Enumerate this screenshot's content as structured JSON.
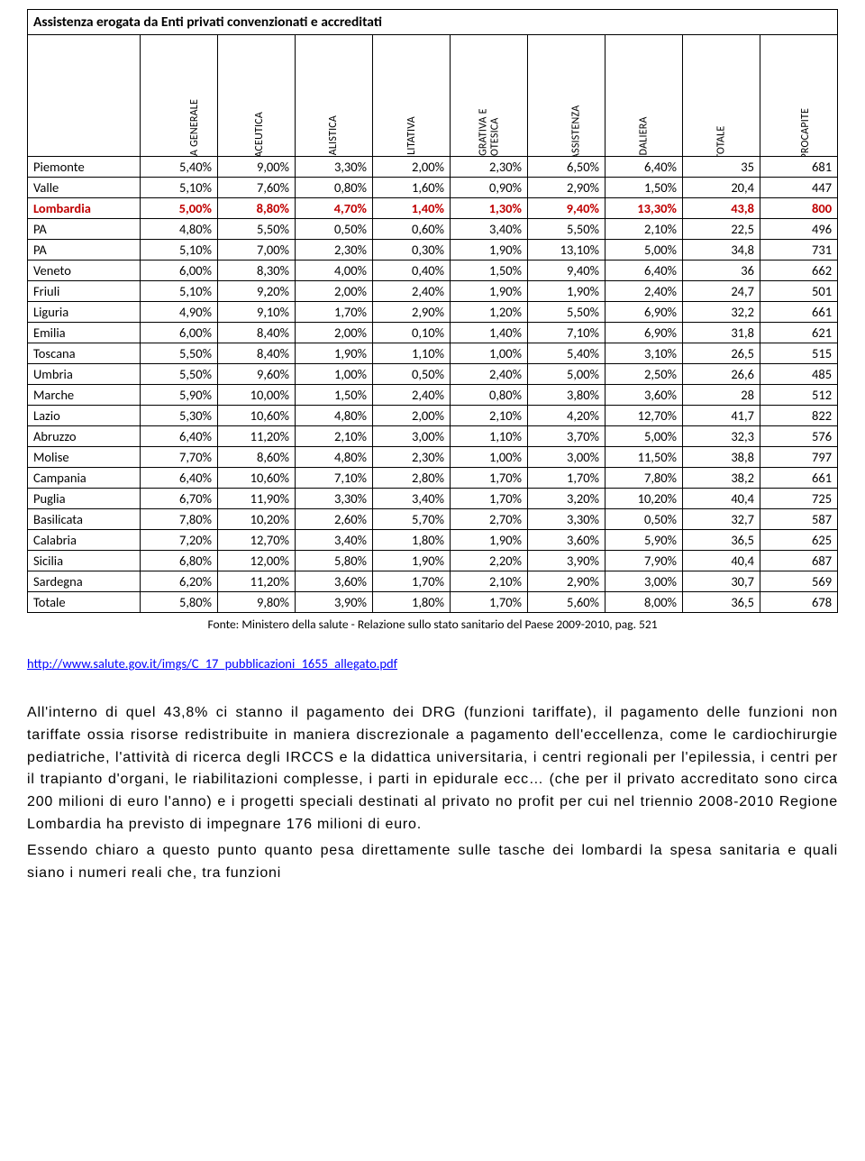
{
  "table": {
    "title": "Assistenza erogata da Enti privati convenzionati e accreditati",
    "columns": [
      "MEDICINA GENERALE",
      "FARMACEUTICA",
      "SPECIALISTICA",
      "RIABILITATIVA",
      "INTEGRATIVA E PROTESICA",
      "ALTRA ASSISTENZA",
      "OSPEDALIERA",
      "% TOTALE",
      "EURO PROCAPITE"
    ],
    "rows": [
      {
        "region": "Piemonte",
        "v": [
          "5,40%",
          "9,00%",
          "3,30%",
          "2,00%",
          "2,30%",
          "6,50%",
          "6,40%",
          "35",
          "681"
        ]
      },
      {
        "region": "Valle",
        "v": [
          "5,10%",
          "7,60%",
          "0,80%",
          "1,60%",
          "0,90%",
          "2,90%",
          "1,50%",
          "20,4",
          "447"
        ]
      },
      {
        "region": "Lombardia",
        "hl": true,
        "v": [
          "5,00%",
          "8,80%",
          "4,70%",
          "1,40%",
          "1,30%",
          "9,40%",
          "13,30%",
          "43,8",
          "800"
        ]
      },
      {
        "region": "PA",
        "v": [
          "4,80%",
          "5,50%",
          "0,50%",
          "0,60%",
          "3,40%",
          "5,50%",
          "2,10%",
          "22,5",
          "496"
        ]
      },
      {
        "region": "PA",
        "v": [
          "5,10%",
          "7,00%",
          "2,30%",
          "0,30%",
          "1,90%",
          "13,10%",
          "5,00%",
          "34,8",
          "731"
        ]
      },
      {
        "region": "Veneto",
        "v": [
          "6,00%",
          "8,30%",
          "4,00%",
          "0,40%",
          "1,50%",
          "9,40%",
          "6,40%",
          "36",
          "662"
        ]
      },
      {
        "region": "Friuli",
        "v": [
          "5,10%",
          "9,20%",
          "2,00%",
          "2,40%",
          "1,90%",
          "1,90%",
          "2,40%",
          "24,7",
          "501"
        ]
      },
      {
        "region": "Liguria",
        "v": [
          "4,90%",
          "9,10%",
          "1,70%",
          "2,90%",
          "1,20%",
          "5,50%",
          "6,90%",
          "32,2",
          "661"
        ]
      },
      {
        "region": "Emilia",
        "v": [
          "6,00%",
          "8,40%",
          "2,00%",
          "0,10%",
          "1,40%",
          "7,10%",
          "6,90%",
          "31,8",
          "621"
        ]
      },
      {
        "region": "Toscana",
        "v": [
          "5,50%",
          "8,40%",
          "1,90%",
          "1,10%",
          "1,00%",
          "5,40%",
          "3,10%",
          "26,5",
          "515"
        ]
      },
      {
        "region": "Umbria",
        "v": [
          "5,50%",
          "9,60%",
          "1,00%",
          "0,50%",
          "2,40%",
          "5,00%",
          "2,50%",
          "26,6",
          "485"
        ]
      },
      {
        "region": "Marche",
        "v": [
          "5,90%",
          "10,00%",
          "1,50%",
          "2,40%",
          "0,80%",
          "3,80%",
          "3,60%",
          "28",
          "512"
        ]
      },
      {
        "region": "Lazio",
        "v": [
          "5,30%",
          "10,60%",
          "4,80%",
          "2,00%",
          "2,10%",
          "4,20%",
          "12,70%",
          "41,7",
          "822"
        ]
      },
      {
        "region": "Abruzzo",
        "v": [
          "6,40%",
          "11,20%",
          "2,10%",
          "3,00%",
          "1,10%",
          "3,70%",
          "5,00%",
          "32,3",
          "576"
        ]
      },
      {
        "region": "Molise",
        "v": [
          "7,70%",
          "8,60%",
          "4,80%",
          "2,30%",
          "1,00%",
          "3,00%",
          "11,50%",
          "38,8",
          "797"
        ]
      },
      {
        "region": "Campania",
        "v": [
          "6,40%",
          "10,60%",
          "7,10%",
          "2,80%",
          "1,70%",
          "1,70%",
          "7,80%",
          "38,2",
          "661"
        ]
      },
      {
        "region": "Puglia",
        "v": [
          "6,70%",
          "11,90%",
          "3,30%",
          "3,40%",
          "1,70%",
          "3,20%",
          "10,20%",
          "40,4",
          "725"
        ]
      },
      {
        "region": "Basilicata",
        "v": [
          "7,80%",
          "10,20%",
          "2,60%",
          "5,70%",
          "2,70%",
          "3,30%",
          "0,50%",
          "32,7",
          "587"
        ]
      },
      {
        "region": "Calabria",
        "v": [
          "7,20%",
          "12,70%",
          "3,40%",
          "1,80%",
          "1,90%",
          "3,60%",
          "5,90%",
          "36,5",
          "625"
        ]
      },
      {
        "region": "Sicilia",
        "v": [
          "6,80%",
          "12,00%",
          "5,80%",
          "1,90%",
          "2,20%",
          "3,90%",
          "7,90%",
          "40,4",
          "687"
        ]
      },
      {
        "region": "Sardegna",
        "v": [
          "6,20%",
          "11,20%",
          "3,60%",
          "1,70%",
          "2,10%",
          "2,90%",
          "3,00%",
          "30,7",
          "569"
        ]
      },
      {
        "region": "Totale",
        "v": [
          "5,80%",
          "9,80%",
          "3,90%",
          "1,80%",
          "1,70%",
          "5,60%",
          "8,00%",
          "36,5",
          "678"
        ]
      }
    ],
    "source": "Fonte: Ministero della salute - Relazione sullo stato sanitario del Paese 2009-2010, pag. 521"
  },
  "link": {
    "href": "http://www.salute.gov.it/imgs/C_17_pubblicazioni_1655_allegato.pdf",
    "text": "http://www.salute.gov.it/imgs/C_17_pubblicazioni_1655_allegato.pdf"
  },
  "paragraphs": [
    "All'interno di quel 43,8% ci stanno il pagamento dei DRG (funzioni tariffate), il pagamento delle funzioni non tariffate ossia risorse redistribuite in maniera discrezionale a pagamento dell'eccellenza, come le cardiochirurgie pediatriche, l'attività di ricerca degli IRCCS e la didattica universitaria, i centri regionali per l'epilessia, i centri per il trapianto d'organi, le riabilitazioni complesse, i parti in epidurale ecc… (che per il privato accreditato sono circa 200 milioni di euro l'anno) e i progetti speciali destinati al privato no profit per cui nel triennio 2008-2010 Regione Lombardia ha previsto di impegnare 176 milioni di euro.",
    "Essendo chiaro a questo punto quanto pesa direttamente sulle tasche dei lombardi la spesa sanitaria e quali siano i numeri reali che, tra funzioni"
  ]
}
